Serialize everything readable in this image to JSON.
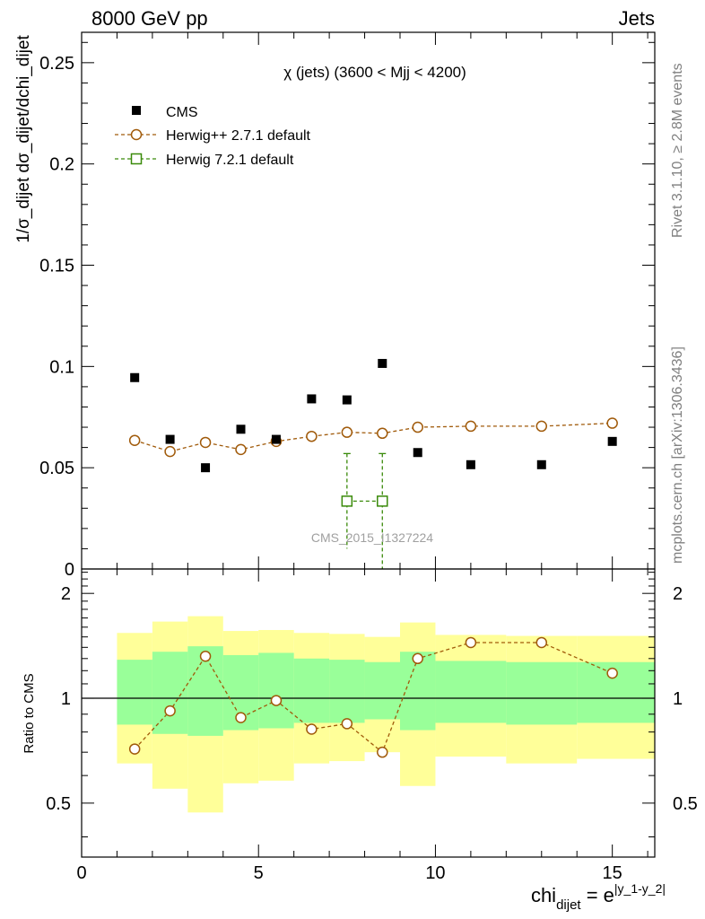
{
  "header": {
    "left": "8000 GeV pp",
    "right": "Jets"
  },
  "side_labels": {
    "rivet": "Rivet 3.1.10, ≥ 2.8M events",
    "mcplots": "mcplots.cern.ch [arXiv:1306.3436]"
  },
  "analysis_id": "CMS_2015_I1327224",
  "colors": {
    "cms": "#000000",
    "herwig_pp": "#a05a0a",
    "herwig7": "#3a8a0a",
    "band_outer": "#ffff99",
    "band_inner": "#99ff99"
  },
  "chart_data": [
    {
      "type": "scatter",
      "title": "χ (jets) (3600 < Mjj < 4200)",
      "ylabel": "1/σ_dijet dσ_dijet/dchi_dijet",
      "xlabel": "",
      "xlim": [
        0,
        16.2
      ],
      "ylim": [
        0,
        0.265
      ],
      "xticks": [
        0,
        5,
        10,
        15
      ],
      "yticks": [
        0.05,
        0.1,
        0.15,
        0.2,
        0.25
      ],
      "ytick_labels": [
        "0.05",
        "0.1",
        "0.15",
        "0.2",
        "0.25"
      ],
      "y0_label": "0",
      "legend_position": "top-left",
      "series": [
        {
          "name": "CMS",
          "marker": "filled-square",
          "x": [
            1.5,
            2.5,
            3.5,
            4.5,
            5.5,
            6.5,
            7.5,
            8.5,
            9.5,
            11,
            13,
            15
          ],
          "y": [
            0.0945,
            0.064,
            0.05,
            0.069,
            0.064,
            0.084,
            0.0835,
            0.1015,
            0.0575,
            0.0515,
            0.0515,
            0.063
          ]
        },
        {
          "name": "Herwig++ 2.7.1 default",
          "marker": "open-circle",
          "line": "dashed",
          "x": [
            1.5,
            2.5,
            3.5,
            4.5,
            5.5,
            6.5,
            7.5,
            8.5,
            9.5,
            11,
            13,
            15
          ],
          "y": [
            0.0635,
            0.058,
            0.0625,
            0.059,
            0.063,
            0.0655,
            0.0675,
            0.067,
            0.07,
            0.0705,
            0.0705,
            0.072
          ]
        },
        {
          "name": "Herwig 7.2.1 default",
          "marker": "open-square",
          "line": "dashed",
          "x": [
            7.5,
            8.5
          ],
          "y": [
            0.0335,
            0.0335
          ],
          "err_low": [
            0.0235,
            0.04
          ],
          "err_high": [
            0.0235,
            0.0235
          ]
        }
      ]
    },
    {
      "type": "line",
      "xlabel": "chi_dijet = e^|y_1-y_2|",
      "ylabel": "Ratio to CMS",
      "xlim": [
        0,
        16.2
      ],
      "ylim": [
        0.35,
        2.35
      ],
      "xticks": [
        0,
        5,
        10,
        15
      ],
      "xtick_labels": [
        "0",
        "5",
        "10",
        "15"
      ],
      "yticks": [
        0.5,
        1,
        2
      ],
      "ytick_labels": [
        "0.5",
        "1",
        "2"
      ],
      "reference_line": 1,
      "bands": [
        {
          "x0": 1,
          "x1": 2,
          "outer": [
            0.65,
            1.54
          ],
          "inner": [
            0.84,
            1.29
          ]
        },
        {
          "x0": 2,
          "x1": 3,
          "outer": [
            0.55,
            1.66
          ],
          "inner": [
            0.79,
            1.36
          ]
        },
        {
          "x0": 3,
          "x1": 4,
          "outer": [
            0.47,
            1.72
          ],
          "inner": [
            0.78,
            1.41
          ]
        },
        {
          "x0": 4,
          "x1": 5,
          "outer": [
            0.57,
            1.56
          ],
          "inner": [
            0.81,
            1.33
          ]
        },
        {
          "x0": 5,
          "x1": 6,
          "outer": [
            0.58,
            1.57
          ],
          "inner": [
            0.82,
            1.35
          ]
        },
        {
          "x0": 6,
          "x1": 7,
          "outer": [
            0.65,
            1.54
          ],
          "inner": [
            0.85,
            1.3
          ]
        },
        {
          "x0": 7,
          "x1": 8,
          "outer": [
            0.66,
            1.53
          ],
          "inner": [
            0.85,
            1.29
          ]
        },
        {
          "x0": 8,
          "x1": 9,
          "outer": [
            0.7,
            1.5
          ],
          "inner": [
            0.87,
            1.27
          ]
        },
        {
          "x0": 9,
          "x1": 10,
          "outer": [
            0.56,
            1.65
          ],
          "inner": [
            0.81,
            1.36
          ]
        },
        {
          "x0": 10,
          "x1": 12,
          "outer": [
            0.68,
            1.52
          ],
          "inner": [
            0.85,
            1.28
          ]
        },
        {
          "x0": 12,
          "x1": 14,
          "outer": [
            0.65,
            1.51
          ],
          "inner": [
            0.84,
            1.27
          ]
        },
        {
          "x0": 14,
          "x1": 16.2,
          "outer": [
            0.67,
            1.51
          ],
          "inner": [
            0.85,
            1.27
          ]
        }
      ],
      "series": [
        {
          "name": "Herwig++ 2.7.1 default",
          "marker": "open-circle",
          "line": "dashed",
          "x": [
            1.5,
            2.5,
            3.5,
            4.5,
            5.5,
            6.5,
            7.5,
            8.5,
            9.5,
            11,
            13,
            15
          ],
          "y": [
            0.715,
            0.92,
            1.32,
            0.88,
            0.985,
            0.815,
            0.845,
            0.7,
            1.3,
            1.445,
            1.445,
            1.18
          ]
        }
      ]
    }
  ]
}
